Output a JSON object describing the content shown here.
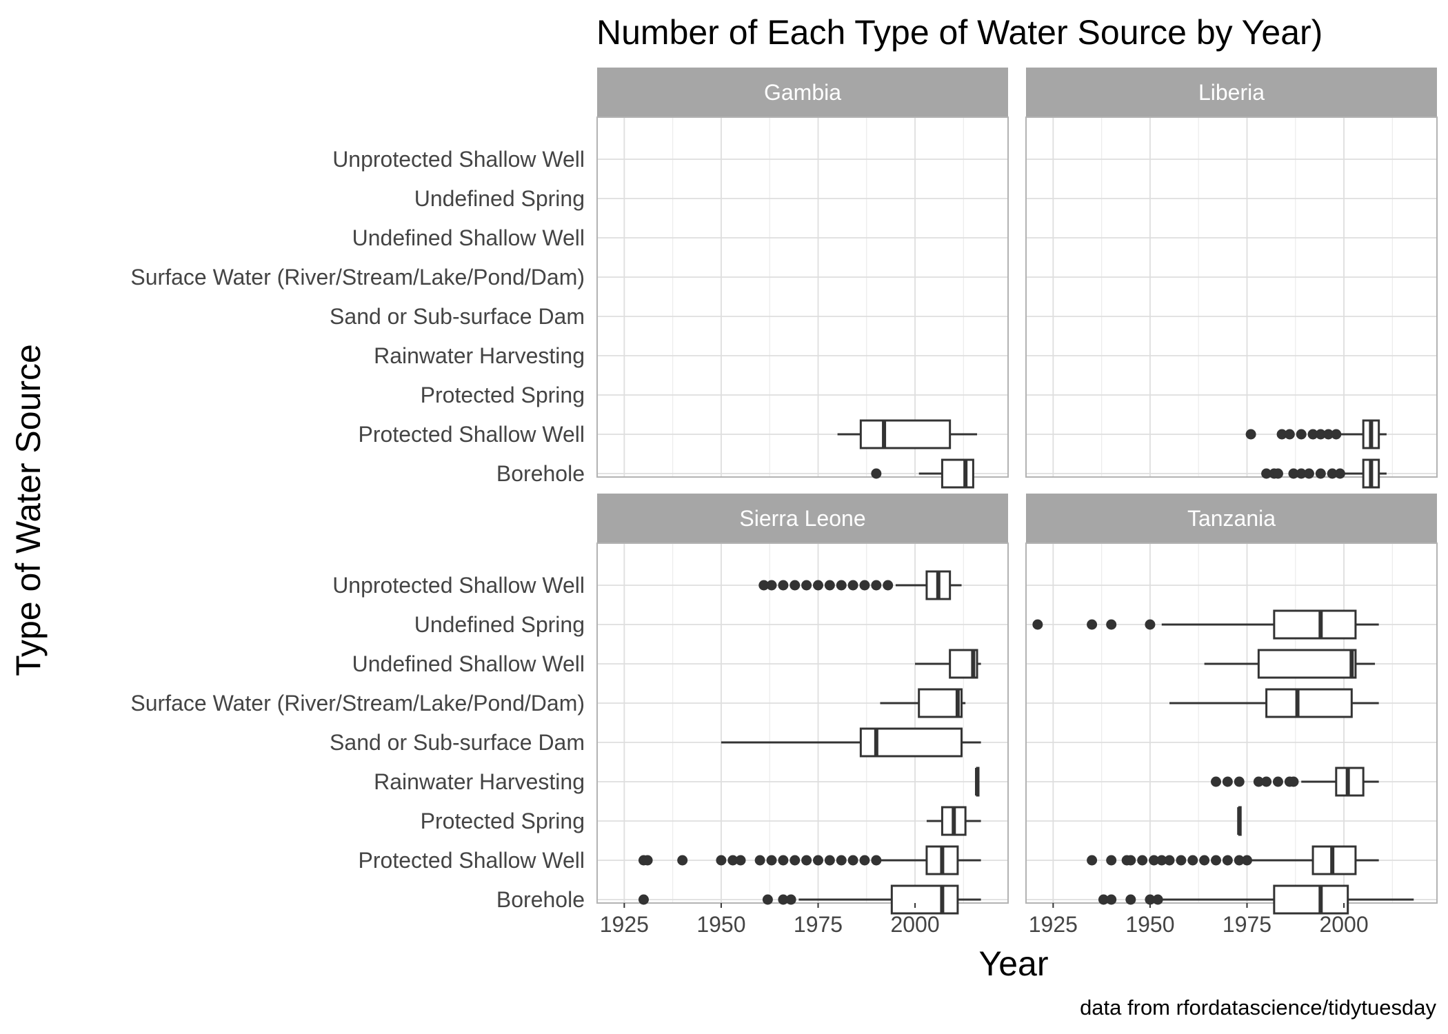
{
  "chart_data": {
    "type": "boxplot",
    "title": "Number of Each Type of Water Source by Year)",
    "xlabel": "Year",
    "ylabel": "Type of Water Source",
    "caption": "data from rfordatascience/tidytuesday",
    "xlim": [
      1918,
      2024
    ],
    "xticks": [
      1925,
      1950,
      1975,
      2000
    ],
    "grid": true,
    "categories": [
      "Borehole",
      "Protected Shallow Well",
      "Protected Spring",
      "Rainwater Harvesting",
      "Sand or Sub-surface Dam",
      "Surface Water (River/Stream/Lake/Pond/Dam)",
      "Undefined Shallow Well",
      "Undefined Spring",
      "Unprotected Shallow Well"
    ],
    "facets": [
      {
        "name": "Gambia",
        "boxes": [
          {
            "category": "Borehole",
            "whisker_low": 2001,
            "q1": 2007,
            "median": 2013,
            "q3": 2015,
            "whisker_high": 2015,
            "outliers": [
              1990
            ]
          },
          {
            "category": "Protected Shallow Well",
            "whisker_low": 1980,
            "q1": 1986,
            "median": 1992,
            "q3": 2009,
            "whisker_high": 2016,
            "outliers": []
          }
        ]
      },
      {
        "name": "Liberia",
        "boxes": [
          {
            "category": "Borehole",
            "whisker_low": 2000,
            "q1": 2005,
            "median": 2007,
            "q3": 2009,
            "whisker_high": 2011,
            "outliers": [
              1980,
              1982,
              1983,
              1987,
              1989,
              1991,
              1994,
              1997,
              1999
            ]
          },
          {
            "category": "Protected Shallow Well",
            "whisker_low": 1999,
            "q1": 2005,
            "median": 2007,
            "q3": 2009,
            "whisker_high": 2011,
            "outliers": [
              1976,
              1984,
              1986,
              1989,
              1992,
              1994,
              1996,
              1998
            ]
          }
        ]
      },
      {
        "name": "Sierra Leone",
        "boxes": [
          {
            "category": "Borehole",
            "whisker_low": 1970,
            "q1": 1994,
            "median": 2007,
            "q3": 2011,
            "whisker_high": 2017,
            "outliers": [
              1930,
              1962,
              1966,
              1968
            ]
          },
          {
            "category": "Protected Shallow Well",
            "whisker_low": 1991,
            "q1": 2003,
            "median": 2007,
            "q3": 2011,
            "whisker_high": 2017,
            "outliers": [
              1930,
              1931,
              1940,
              1950,
              1953,
              1955,
              1960,
              1963,
              1966,
              1969,
              1972,
              1975,
              1978,
              1981,
              1984,
              1987,
              1990
            ]
          },
          {
            "category": "Protected Spring",
            "whisker_low": 2003,
            "q1": 2007,
            "median": 2010,
            "q3": 2013,
            "whisker_high": 2017,
            "outliers": []
          },
          {
            "category": "Rainwater Harvesting",
            "whisker_low": 2016,
            "q1": 2016,
            "median": 2016,
            "q3": 2016,
            "whisker_high": 2016,
            "outliers": []
          },
          {
            "category": "Sand or Sub-surface Dam",
            "whisker_low": 1950,
            "q1": 1986,
            "median": 1990,
            "q3": 2012,
            "whisker_high": 2017,
            "outliers": []
          },
          {
            "category": "Surface Water (River/Stream/Lake/Pond/Dam)",
            "whisker_low": 1991,
            "q1": 2001,
            "median": 2011,
            "q3": 2012,
            "whisker_high": 2013,
            "outliers": []
          },
          {
            "category": "Undefined Shallow Well",
            "whisker_low": 2000,
            "q1": 2009,
            "median": 2015,
            "q3": 2016,
            "whisker_high": 2017,
            "outliers": []
          },
          {
            "category": "Undefined Spring",
            "whisker_low": null,
            "q1": null,
            "median": null,
            "q3": null,
            "whisker_high": null,
            "outliers": []
          },
          {
            "category": "Unprotected Shallow Well",
            "whisker_low": 1995,
            "q1": 2003,
            "median": 2006,
            "q3": 2009,
            "whisker_high": 2012,
            "outliers": [
              1961,
              1963,
              1966,
              1969,
              1972,
              1975,
              1978,
              1981,
              1984,
              1987,
              1990,
              1993
            ]
          }
        ]
      },
      {
        "name": "Tanzania",
        "boxes": [
          {
            "category": "Borehole",
            "whisker_low": 1953,
            "q1": 1982,
            "median": 1994,
            "q3": 2001,
            "whisker_high": 2018,
            "outliers": [
              1938,
              1940,
              1945,
              1950,
              1952
            ]
          },
          {
            "category": "Protected Shallow Well",
            "whisker_low": 1976,
            "q1": 1992,
            "median": 1997,
            "q3": 2003,
            "whisker_high": 2009,
            "outliers": [
              1935,
              1940,
              1944,
              1945,
              1948,
              1951,
              1953,
              1955,
              1958,
              1961,
              1964,
              1967,
              1970,
              1973,
              1975
            ]
          },
          {
            "category": "Protected Spring",
            "whisker_low": 1973,
            "q1": 1973,
            "median": 1973,
            "q3": 1973,
            "whisker_high": 1973,
            "outliers": []
          },
          {
            "category": "Rainwater Harvesting",
            "whisker_low": 1989,
            "q1": 1998,
            "median": 2001,
            "q3": 2005,
            "whisker_high": 2009,
            "outliers": [
              1967,
              1970,
              1973,
              1978,
              1980,
              1983,
              1986,
              1987
            ]
          },
          {
            "category": "Sand or Sub-surface Dam",
            "whisker_low": null,
            "q1": null,
            "median": null,
            "q3": null,
            "whisker_high": null,
            "outliers": []
          },
          {
            "category": "Surface Water (River/Stream/Lake/Pond/Dam)",
            "whisker_low": 1955,
            "q1": 1980,
            "median": 1988,
            "q3": 2002,
            "whisker_high": 2009,
            "outliers": []
          },
          {
            "category": "Undefined Shallow Well",
            "whisker_low": 1964,
            "q1": 1978,
            "median": 2002,
            "q3": 2003,
            "whisker_high": 2008,
            "outliers": []
          },
          {
            "category": "Undefined Spring",
            "whisker_low": 1953,
            "q1": 1982,
            "median": 1994,
            "q3": 2003,
            "whisker_high": 2009,
            "outliers": [
              1921,
              1935,
              1940,
              1950
            ]
          },
          {
            "category": "Unprotected Shallow Well",
            "whisker_low": null,
            "q1": null,
            "median": null,
            "q3": null,
            "whisker_high": null,
            "outliers": []
          }
        ]
      }
    ]
  }
}
